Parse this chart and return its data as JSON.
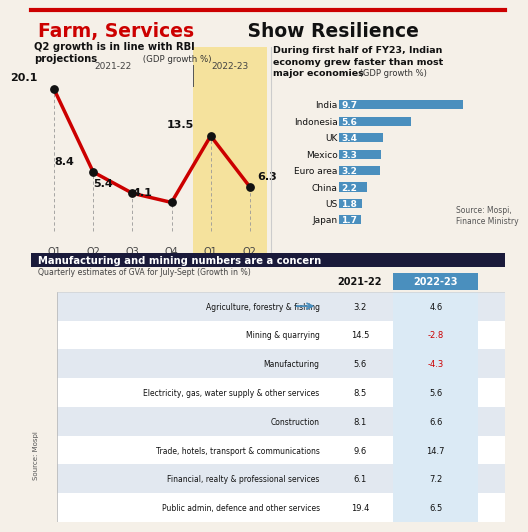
{
  "title_red": "Farm, Services",
  "title_black": " Show Resilience",
  "line_quarters": [
    "Q1",
    "Q2",
    "Q3",
    "Q4",
    "Q1",
    "Q2"
  ],
  "line_values": [
    20.1,
    8.4,
    5.4,
    4.1,
    13.5,
    6.3
  ],
  "line_color": "#cc0000",
  "top_left_title_bold": "Q2 growth is in line with RBI\nprojections",
  "top_left_title_normal": " (GDP growth %)",
  "year_label_2122": "2021-22",
  "year_label_2223": "2022-23",
  "top_right_title_bold": "During first half of FY23, Indian\neconomy grew faster than most\nmajor economies",
  "top_right_title_normal": " (GDP growth %)",
  "bar_countries": [
    "India",
    "Indonesia",
    "UK",
    "Mexico",
    "Euro area",
    "China",
    "US",
    "Japan"
  ],
  "bar_values": [
    9.7,
    5.6,
    3.4,
    3.3,
    3.2,
    2.2,
    1.8,
    1.7
  ],
  "bar_color": "#4a8fbe",
  "bar_label_color": "#ffffff",
  "source_text": "Source: Mospi,\nFinance Ministry",
  "bottom_header": "Manufacturing and mining numbers are a concern",
  "bottom_subtitle": "Quarterly estimates of GVA for July-Sept (Growth in %)",
  "table_sectors": [
    "Agriculture, forestry & fishing",
    "Mining & quarrying",
    "Manufacturing",
    "Electricity, gas, water supply & other services",
    "Construction",
    "Trade, hotels, transport & communications",
    "Financial, realty & professional services",
    "Public admin, defence and other services"
  ],
  "table_2122": [
    3.2,
    14.5,
    5.6,
    8.5,
    8.1,
    9.6,
    6.1,
    19.4
  ],
  "table_2223": [
    4.6,
    -2.8,
    -4.3,
    5.6,
    6.6,
    14.7,
    7.2,
    6.5
  ],
  "col_header_2122": "2021-22",
  "col_header_2223": "2022-23",
  "negative_color": "#cc0000",
  "normal_color": "#111111",
  "shaded_row_color": "#e2e8f0",
  "white_row_color": "#ffffff",
  "header_bg_color": "#1a1a3a",
  "col2223_bg_color": "#4a8fbe",
  "top_bg": "#f5f0e8",
  "bottom_bg": "#ffffff"
}
